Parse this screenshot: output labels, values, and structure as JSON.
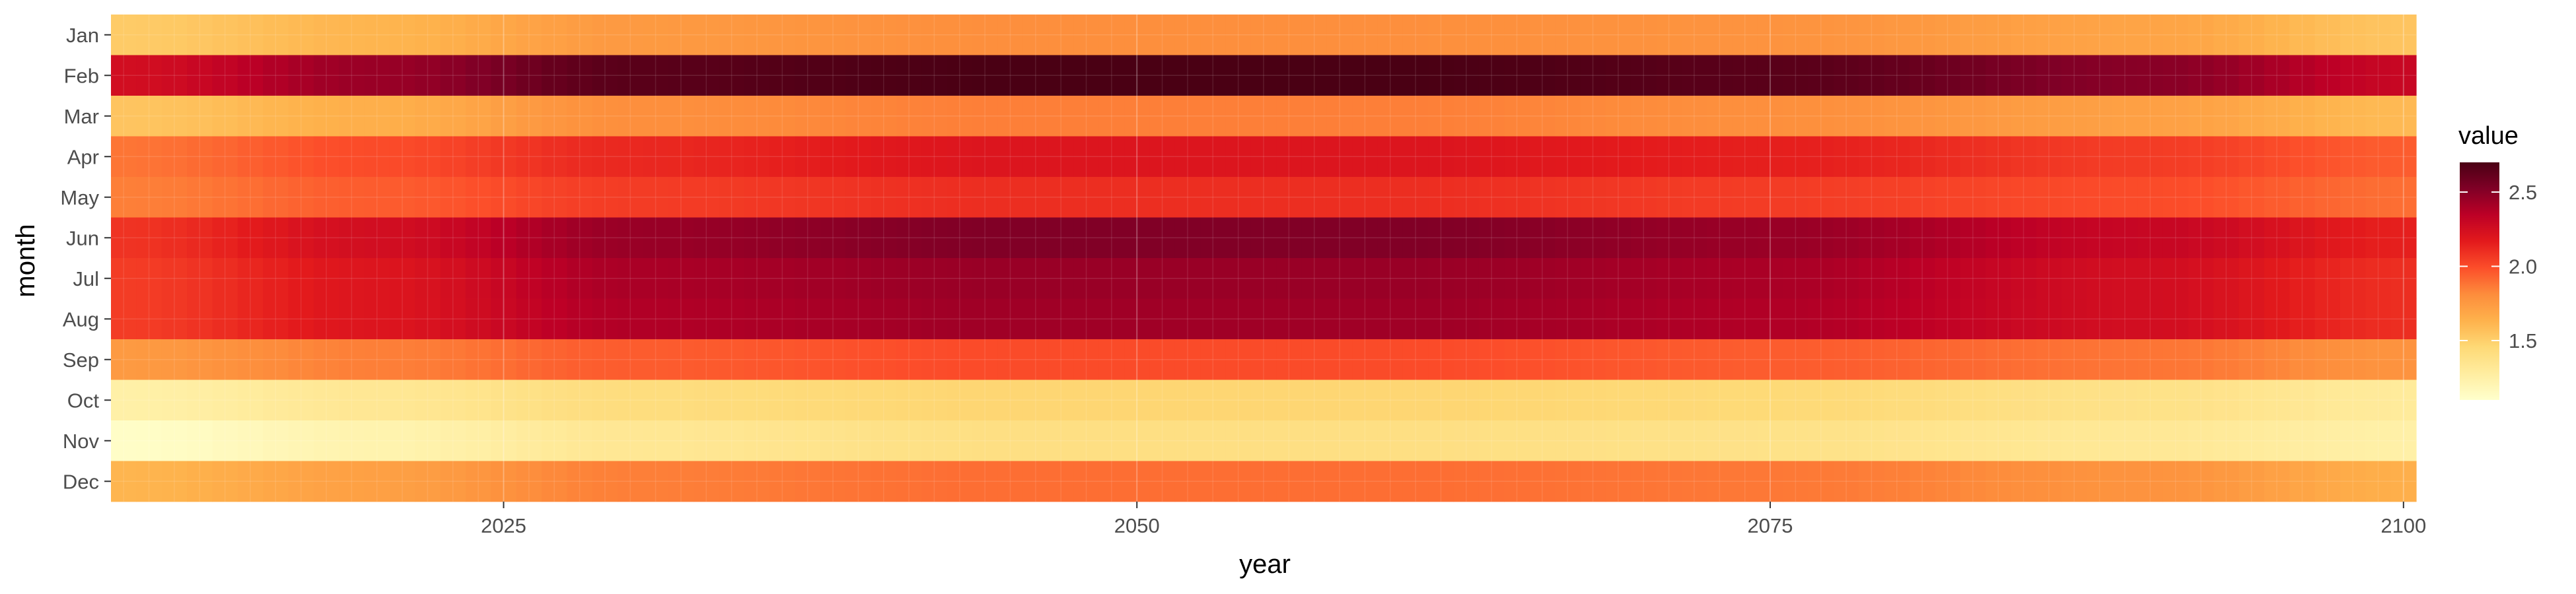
{
  "chart_data": {
    "type": "heatmap",
    "xlabel": "year",
    "ylabel": "month",
    "legend_title": "value",
    "legend_position": "right",
    "x_range": [
      2010,
      2100
    ],
    "x_ticks": [
      2025,
      2050,
      2075,
      2100
    ],
    "y_categories": [
      "Jan",
      "Feb",
      "Mar",
      "Apr",
      "May",
      "Jun",
      "Jul",
      "Aug",
      "Sep",
      "Oct",
      "Nov",
      "Dec"
    ],
    "color_scale": {
      "palette": "YlOrRd",
      "stops": [
        "#ffffcc",
        "#ffeda0",
        "#fed976",
        "#feb24c",
        "#fd8d3c",
        "#fc4e2a",
        "#e31a1c",
        "#bd0026",
        "#800026",
        "#4a0014"
      ],
      "range": [
        1.1,
        2.7
      ],
      "legend_ticks": [
        1.5,
        2.0,
        2.5
      ],
      "legend_tick_labels": [
        "1.5",
        "2.0",
        "2.5"
      ]
    },
    "grid": true,
    "series": [
      {
        "name": "Jan",
        "profile": [
          [
            2010,
            1.52
          ],
          [
            2020,
            1.62
          ],
          [
            2030,
            1.75
          ],
          [
            2045,
            1.8
          ],
          [
            2060,
            1.8
          ],
          [
            2075,
            1.78
          ],
          [
            2090,
            1.7
          ],
          [
            2100,
            1.55
          ]
        ]
      },
      {
        "name": "Feb",
        "profile": [
          [
            2010,
            2.25
          ],
          [
            2020,
            2.45
          ],
          [
            2030,
            2.65
          ],
          [
            2045,
            2.7
          ],
          [
            2060,
            2.7
          ],
          [
            2075,
            2.65
          ],
          [
            2090,
            2.5
          ],
          [
            2100,
            2.3
          ]
        ]
      },
      {
        "name": "Mar",
        "profile": [
          [
            2010,
            1.55
          ],
          [
            2020,
            1.65
          ],
          [
            2030,
            1.8
          ],
          [
            2045,
            1.85
          ],
          [
            2060,
            1.85
          ],
          [
            2075,
            1.8
          ],
          [
            2090,
            1.72
          ],
          [
            2100,
            1.6
          ]
        ]
      },
      {
        "name": "Apr",
        "profile": [
          [
            2010,
            1.88
          ],
          [
            2020,
            2.0
          ],
          [
            2030,
            2.12
          ],
          [
            2045,
            2.2
          ],
          [
            2060,
            2.2
          ],
          [
            2075,
            2.15
          ],
          [
            2090,
            2.05
          ],
          [
            2100,
            1.95
          ]
        ]
      },
      {
        "name": "May",
        "profile": [
          [
            2010,
            1.85
          ],
          [
            2020,
            1.95
          ],
          [
            2030,
            2.05
          ],
          [
            2045,
            2.1
          ],
          [
            2060,
            2.1
          ],
          [
            2075,
            2.05
          ],
          [
            2090,
            2.0
          ],
          [
            2100,
            1.9
          ]
        ]
      },
      {
        "name": "Jun",
        "profile": [
          [
            2010,
            2.08
          ],
          [
            2020,
            2.25
          ],
          [
            2030,
            2.45
          ],
          [
            2045,
            2.52
          ],
          [
            2060,
            2.52
          ],
          [
            2075,
            2.45
          ],
          [
            2090,
            2.3
          ],
          [
            2100,
            2.15
          ]
        ]
      },
      {
        "name": "Jul",
        "profile": [
          [
            2010,
            2.05
          ],
          [
            2020,
            2.2
          ],
          [
            2030,
            2.4
          ],
          [
            2045,
            2.45
          ],
          [
            2060,
            2.45
          ],
          [
            2075,
            2.4
          ],
          [
            2090,
            2.25
          ],
          [
            2100,
            2.1
          ]
        ]
      },
      {
        "name": "Aug",
        "profile": [
          [
            2010,
            2.05
          ],
          [
            2020,
            2.2
          ],
          [
            2030,
            2.38
          ],
          [
            2045,
            2.43
          ],
          [
            2060,
            2.43
          ],
          [
            2075,
            2.38
          ],
          [
            2090,
            2.25
          ],
          [
            2100,
            2.1
          ]
        ]
      },
      {
        "name": "Sep",
        "profile": [
          [
            2010,
            1.75
          ],
          [
            2020,
            1.85
          ],
          [
            2030,
            1.95
          ],
          [
            2045,
            2.0
          ],
          [
            2060,
            2.0
          ],
          [
            2075,
            1.95
          ],
          [
            2090,
            1.88
          ],
          [
            2100,
            1.78
          ]
        ]
      },
      {
        "name": "Oct",
        "profile": [
          [
            2010,
            1.25
          ],
          [
            2020,
            1.33
          ],
          [
            2030,
            1.42
          ],
          [
            2045,
            1.47
          ],
          [
            2060,
            1.47
          ],
          [
            2075,
            1.45
          ],
          [
            2090,
            1.38
          ],
          [
            2100,
            1.3
          ]
        ]
      },
      {
        "name": "Nov",
        "profile": [
          [
            2010,
            1.12
          ],
          [
            2020,
            1.22
          ],
          [
            2030,
            1.33
          ],
          [
            2045,
            1.4
          ],
          [
            2060,
            1.4
          ],
          [
            2075,
            1.38
          ],
          [
            2090,
            1.32
          ],
          [
            2100,
            1.25
          ]
        ]
      },
      {
        "name": "Dec",
        "profile": [
          [
            2010,
            1.62
          ],
          [
            2020,
            1.72
          ],
          [
            2030,
            1.85
          ],
          [
            2045,
            1.9
          ],
          [
            2060,
            1.9
          ],
          [
            2075,
            1.87
          ],
          [
            2090,
            1.78
          ],
          [
            2100,
            1.65
          ]
        ]
      }
    ]
  }
}
